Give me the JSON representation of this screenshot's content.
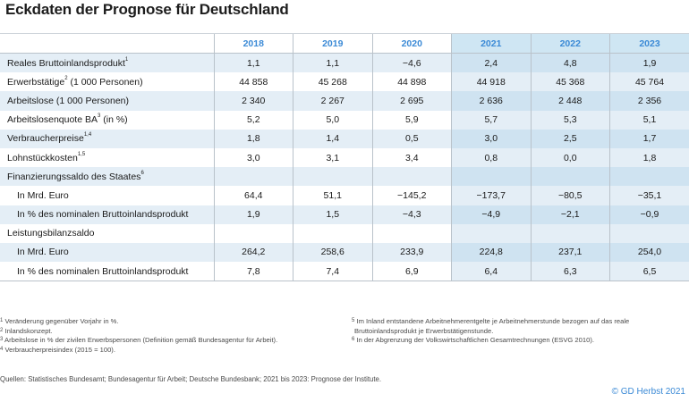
{
  "title": "Eckdaten der Prognose für Deutschland",
  "years": [
    "2018",
    "2019",
    "2020",
    "2021",
    "2022",
    "2023"
  ],
  "rows": [
    {
      "label": "Reales Bruttoinlandsprodukt",
      "sup": "1",
      "values": [
        "1,1",
        "1,1",
        "−4,6",
        "2,4",
        "4,8",
        "1,9"
      ]
    },
    {
      "label": "Erwerbstätige",
      "sup": "2",
      "suffix": " (1 000 Personen)",
      "values": [
        "44 858",
        "45 268",
        "44 898",
        "44 918",
        "45 368",
        "45 764"
      ]
    },
    {
      "label": "Arbeitslose (1 000 Personen)",
      "values": [
        "2 340",
        "2 267",
        "2 695",
        "2 636",
        "2 448",
        "2 356"
      ]
    },
    {
      "label": "Arbeitslosenquote BA",
      "sup": "3",
      "suffix": " (in %)",
      "values": [
        "5,2",
        "5,0",
        "5,9",
        "5,7",
        "5,3",
        "5,1"
      ]
    },
    {
      "label": "Verbraucherpreise",
      "sup": "1,4",
      "values": [
        "1,8",
        "1,4",
        "0,5",
        "3,0",
        "2,5",
        "1,7"
      ]
    },
    {
      "label": "Lohnstückkosten",
      "sup": "1,5",
      "values": [
        "3,0",
        "3,1",
        "3,4",
        "0,8",
        "0,0",
        "1,8"
      ]
    },
    {
      "label": "Finanzierungssaldo des Staates",
      "sup": "6",
      "values": [
        "",
        "",
        "",
        "",
        "",
        ""
      ]
    },
    {
      "label": "In Mrd. Euro",
      "indent": true,
      "values": [
        "64,4",
        "51,1",
        "−145,2",
        "−173,7",
        "−80,5",
        "−35,1"
      ]
    },
    {
      "label": "In % des nominalen Bruttoinlandsprodukt",
      "indent": true,
      "values": [
        "1,9",
        "1,5",
        "−4,3",
        "−4,9",
        "−2,1",
        "−0,9"
      ]
    },
    {
      "label": "Leistungsbilanzsaldo",
      "values": [
        "",
        "",
        "",
        "",
        "",
        ""
      ]
    },
    {
      "label": "In Mrd. Euro",
      "indent": true,
      "values": [
        "264,2",
        "258,6",
        "233,9",
        "224,8",
        "237,1",
        "254,0"
      ]
    },
    {
      "label": "In % des nominalen Bruttoinlandsprodukt",
      "indent": true,
      "values": [
        "7,8",
        "7,4",
        "6,9",
        "6,4",
        "6,3",
        "6,5"
      ]
    }
  ],
  "footnotes_left": [
    {
      "num": "1",
      "text": " Veränderung gegenüber Vorjahr in %."
    },
    {
      "num": "2",
      "text": " Inlandskonzept."
    },
    {
      "num": "3",
      "text": " Arbeitslose in % der zivilen Erwerbspersonen (Definition gemäß Bundesagentur für Arbeit)."
    },
    {
      "num": "4",
      "text": " Verbraucherpreisindex (2015 = 100)."
    }
  ],
  "footnotes_right": [
    {
      "num": "5",
      "text": " Im Inland entstandene Arbeitnehmerentgelte je Arbeitnehmerstunde bezogen auf das reale"
    },
    {
      "num": "",
      "text": "Bruttoinlandsprodukt je Erwerbstätigenstunde."
    },
    {
      "num": "6",
      "text": " In der Abgrenzung der Volkswirtschaftlichen Gesamtrechnungen (ESVG 2010)."
    }
  ],
  "sources": "Quellen: Statistisches Bundesamt; Bundesagentur für Arbeit; Deutsche Bundesbank; 2021 bis 2023: Prognose der Institute.",
  "copyright": "© GD Herbst 2021",
  "colors": {
    "accent": "#3b8ad6",
    "row_shade": "#e4eef6",
    "forecast_shade": "#cfe3f1"
  }
}
